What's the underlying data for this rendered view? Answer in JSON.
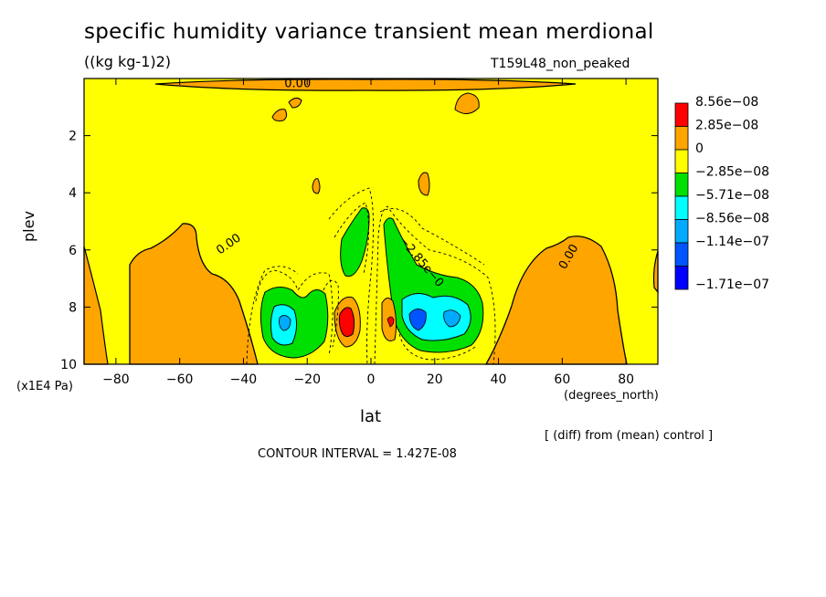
{
  "chart_data": {
    "type": "contour",
    "title": "specific humidity variance transient mean merdional",
    "units": "((kg kg-1)2)",
    "run_label": "T159L48_non_peaked",
    "xlabel": "lat",
    "x_units": "(degrees_north)",
    "ylabel": "plev",
    "y_units": "(x1E4 Pa)",
    "xlim": [
      -90,
      90
    ],
    "ylim": [
      10,
      0
    ],
    "x_ticks": [
      -80,
      -60,
      -40,
      -20,
      0,
      20,
      40,
      60,
      80
    ],
    "y_ticks": [
      2,
      4,
      6,
      8,
      10
    ],
    "contour_interval": "CONTOUR INTERVAL = 1.427E-08",
    "note": "[ (diff) from (mean) control ]",
    "legend": [
      {
        "label": "8.56e-08",
        "color": "#ff0000"
      },
      {
        "label": "2.85e-08",
        "color": "#ffa500"
      },
      {
        "label": "0",
        "color": "#ffff00"
      },
      {
        "label": "-2.85e-08",
        "color": "#00e000"
      },
      {
        "label": "-5.71e-08",
        "color": "#00ffff"
      },
      {
        "label": "-8.56e-08",
        "color": "#00aaff"
      },
      {
        "label": "-1.14e-07",
        "color": "#0055ff"
      },
      {
        "label": "-1.71e-07",
        "color": "#0000ff"
      }
    ],
    "contour_labels": [
      {
        "text": "0.00",
        "lat": -44,
        "plev": 5.9
      },
      {
        "text": "0.00",
        "lat": 63,
        "plev": 6.3
      },
      {
        "text": "0.00",
        "lat": -23,
        "plev": 0.3
      },
      {
        "text": "-2.85e-0",
        "lat": 15,
        "plev": 6.5
      }
    ]
  }
}
